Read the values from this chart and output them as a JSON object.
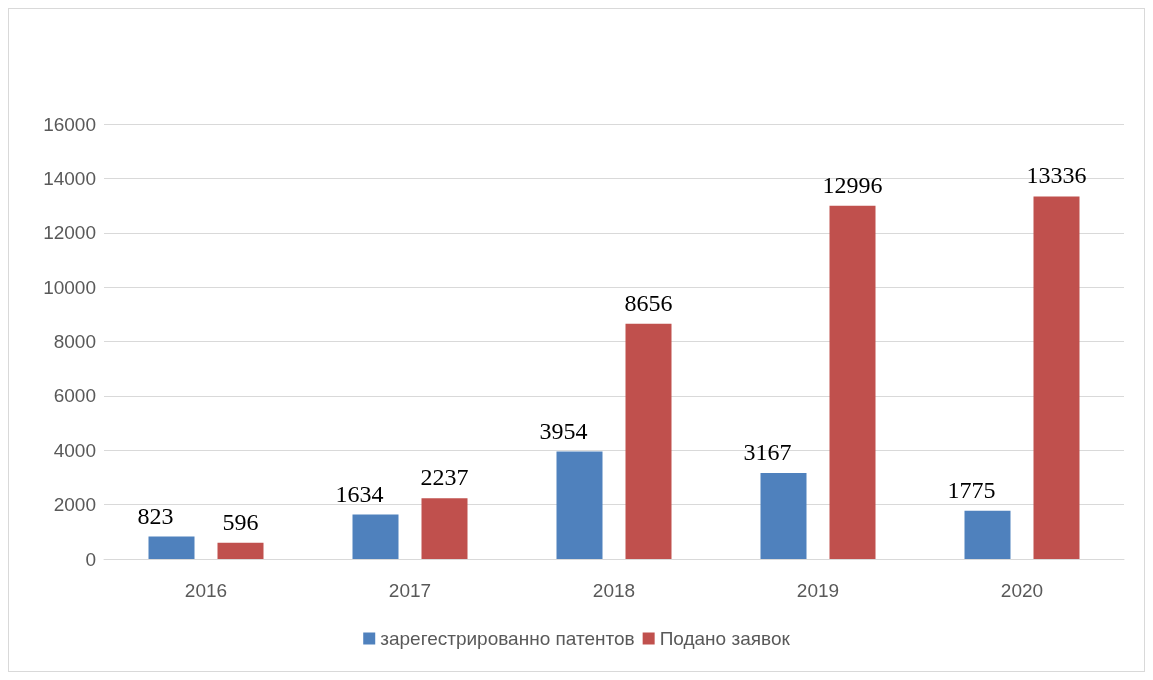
{
  "chart_data": {
    "type": "bar",
    "categories": [
      "2016",
      "2017",
      "2018",
      "2019",
      "2020"
    ],
    "series": [
      {
        "name": "зарегестрированно патентов",
        "color": "#4f81bd",
        "values": [
          823,
          1634,
          3954,
          3167,
          1775
        ]
      },
      {
        "name": "Подано заявок",
        "color": "#c0504d",
        "values": [
          596,
          2237,
          8656,
          12996,
          13336
        ]
      }
    ],
    "ylim": [
      0,
      16000
    ],
    "yticks": [
      0,
      2000,
      4000,
      6000,
      8000,
      10000,
      12000,
      14000,
      16000
    ],
    "grid": "y",
    "legend": "bottom",
    "data_labels": true
  }
}
